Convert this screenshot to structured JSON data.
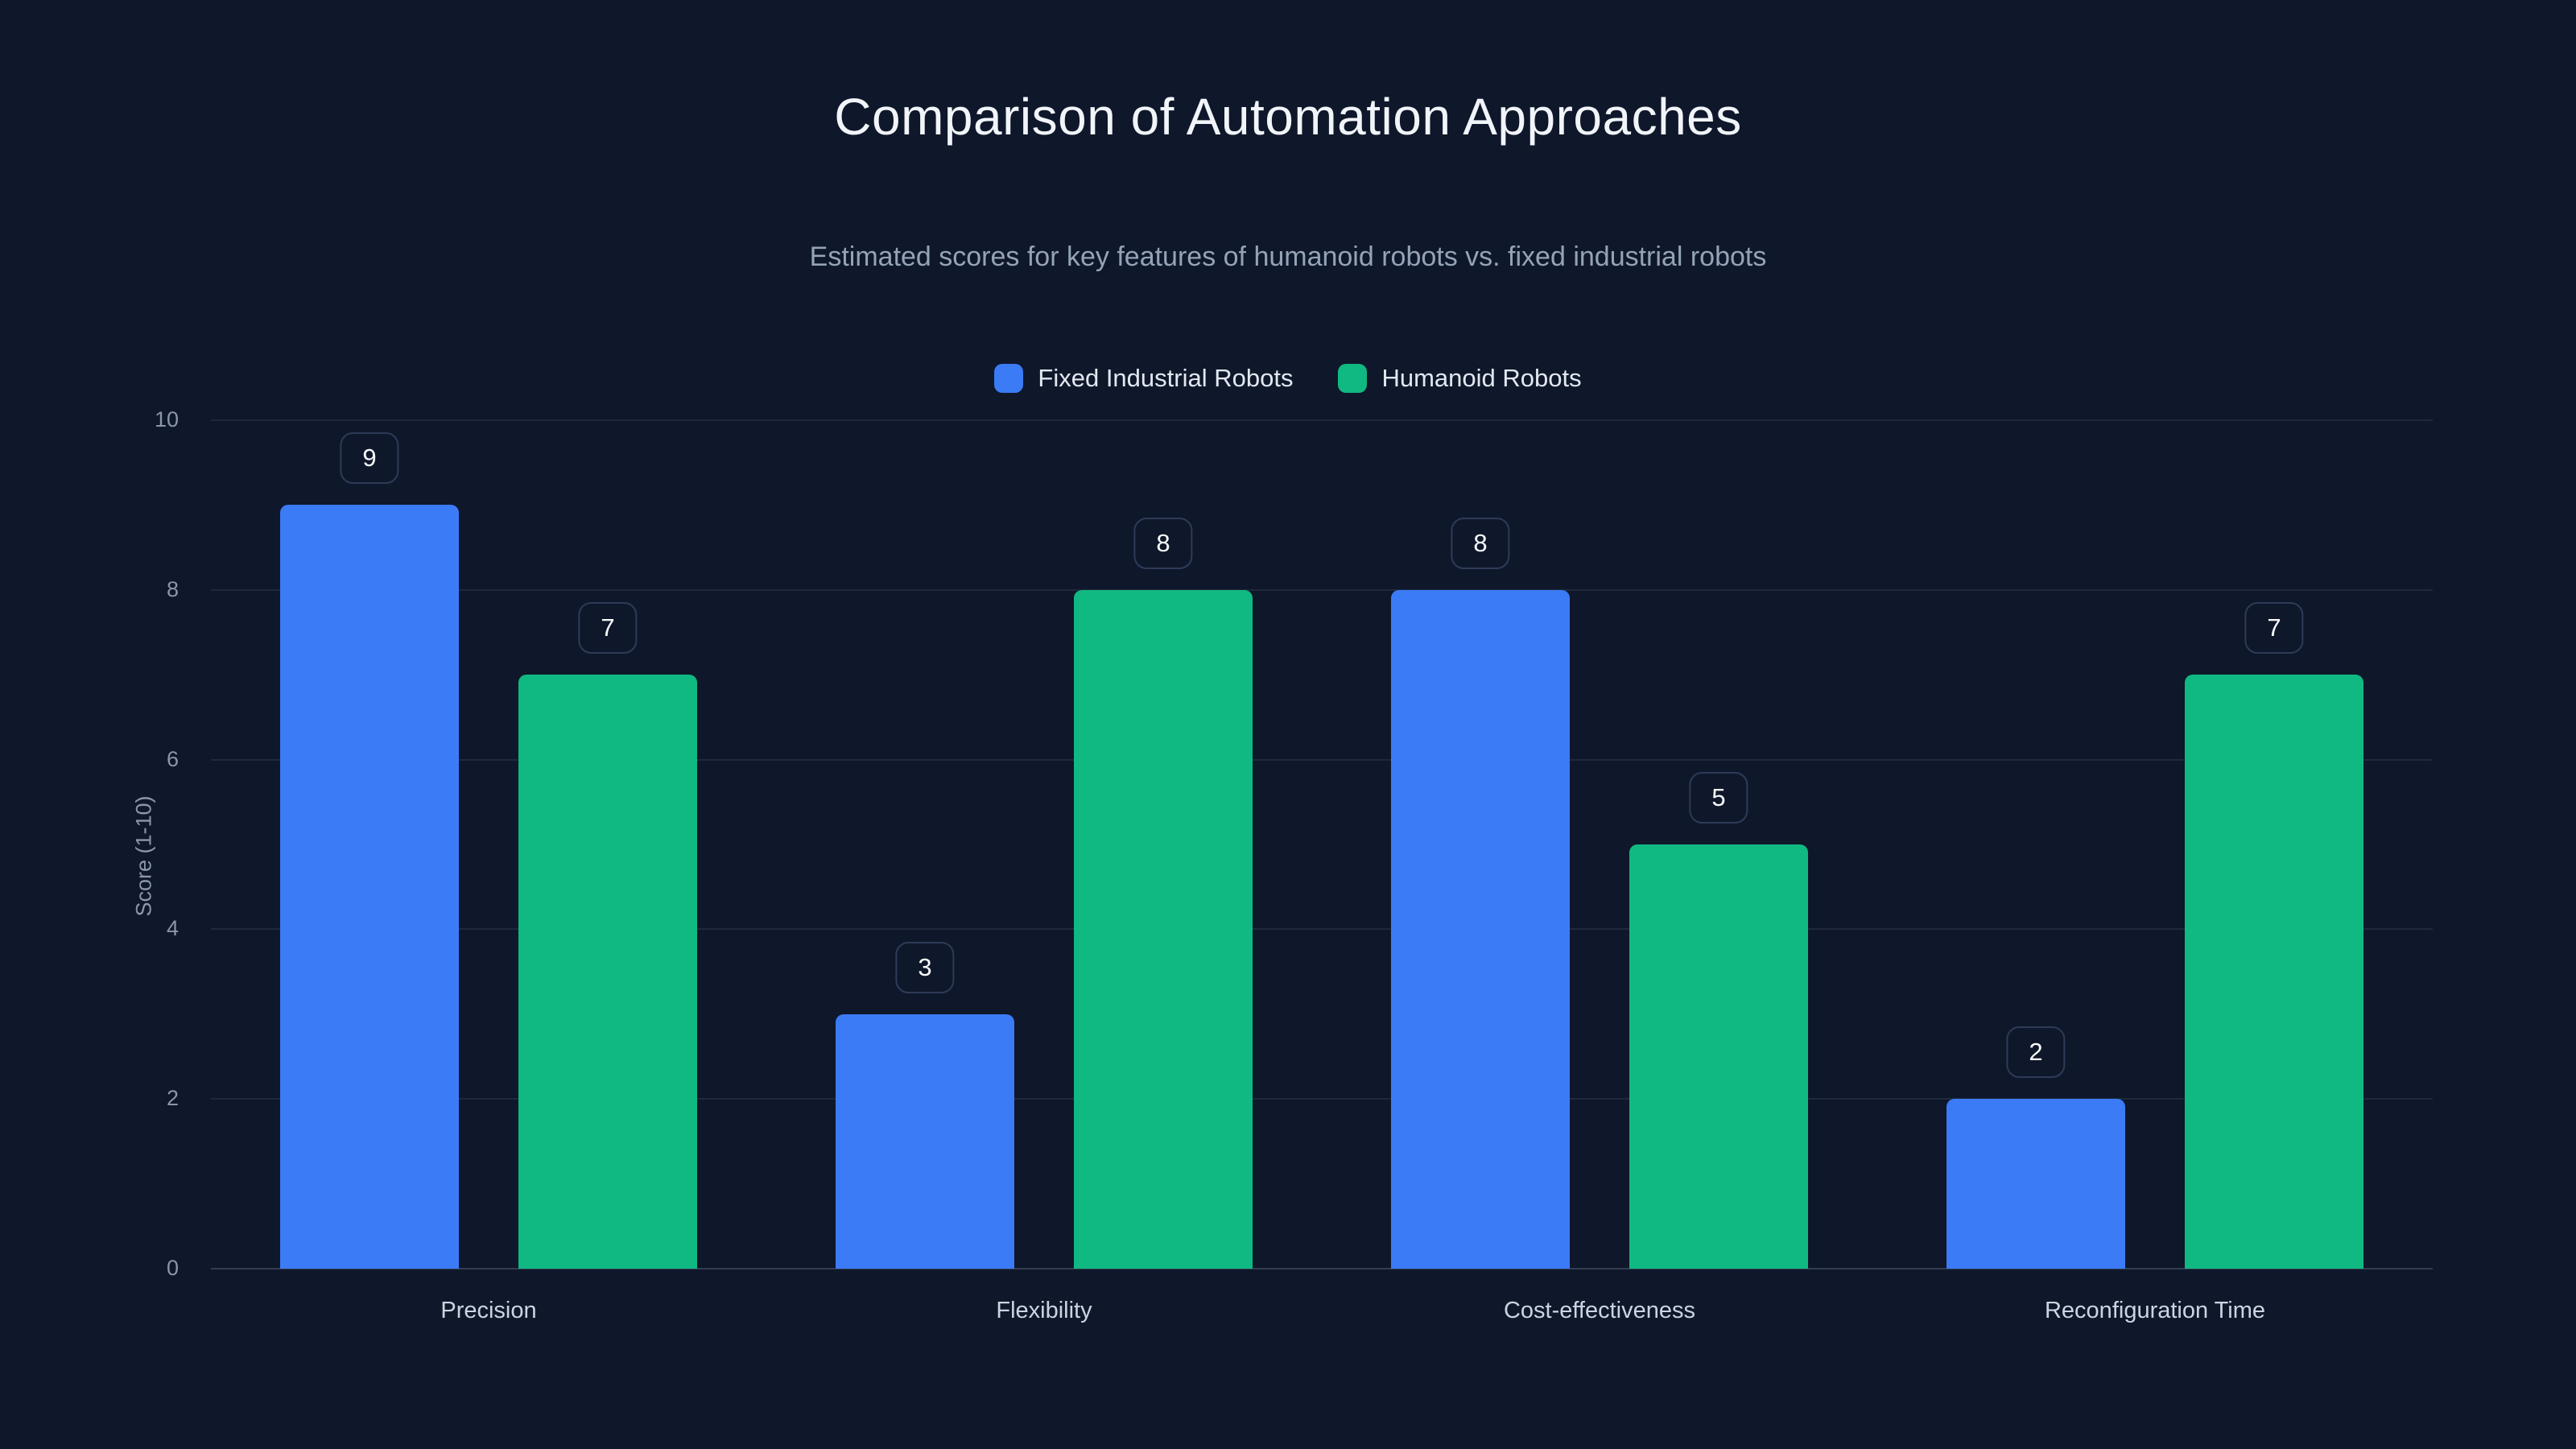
{
  "colors": {
    "background": "#0f172a",
    "grid": "rgba(148,163,184,0.13)",
    "axis_text": "#8b97a8",
    "label_box_border": "#2e3b58",
    "title_text": "#f1f5f9",
    "subtitle_text": "#94a3b8"
  },
  "chart_data": {
    "type": "bar",
    "title": "Comparison of Automation Approaches",
    "subtitle": "Estimated scores for key features of humanoid robots vs. fixed industrial robots",
    "categories": [
      "Precision",
      "Flexibility",
      "Cost-effectiveness",
      "Reconfiguration Time"
    ],
    "series": [
      {
        "name": "Fixed Industrial Robots",
        "color": "#3b7bf6",
        "values": [
          9,
          3,
          8,
          2
        ]
      },
      {
        "name": "Humanoid Robots",
        "color": "#10b981",
        "values": [
          7,
          8,
          5,
          7
        ]
      }
    ],
    "ylabel": "Score (1-10)",
    "yticks": [
      0,
      2,
      4,
      6,
      8,
      10
    ],
    "ylim": [
      0,
      10
    ],
    "grid": true,
    "legend_position": "top",
    "data_labels": true
  }
}
